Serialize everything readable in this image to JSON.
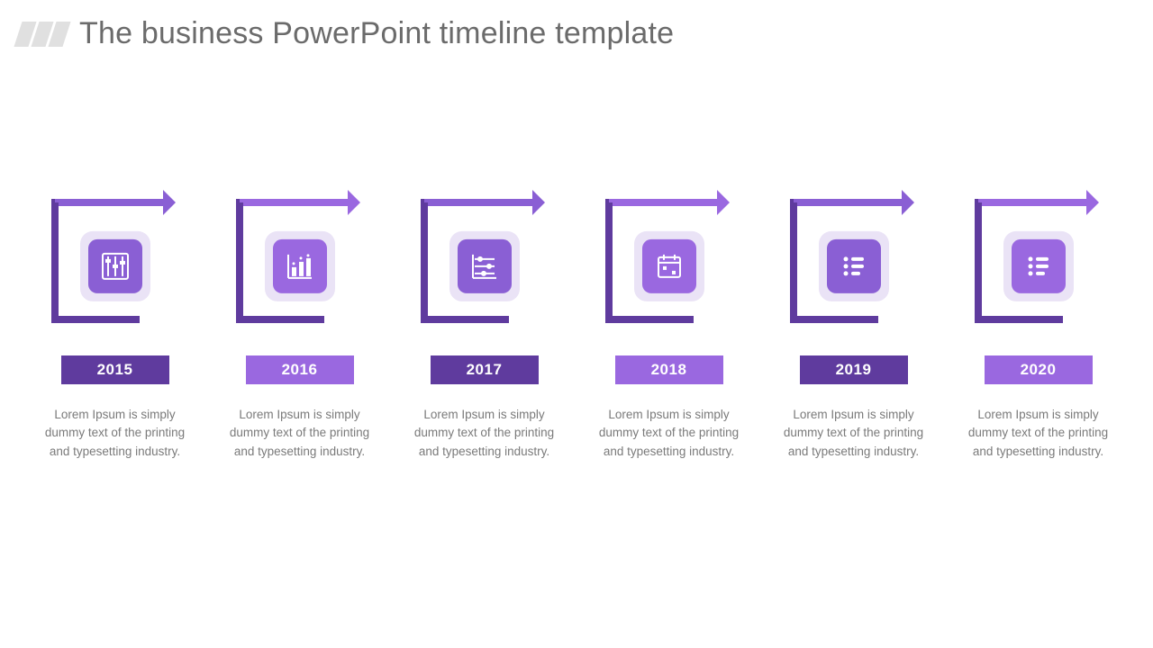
{
  "title": "The business PowerPoint timeline template",
  "colors": {
    "title": "#6b6b6b",
    "header_bar": "#e0e0e0",
    "icon_pale": "#eae3f6",
    "text": "#7a7a7a",
    "white": "#ffffff"
  },
  "timeline": [
    {
      "year": "2015",
      "color_dark": "#5f3b9e",
      "color_light": "#8a5fd4",
      "icon": "abacus",
      "desc": "Lorem Ipsum is simply dummy text of the printing and typesetting industry."
    },
    {
      "year": "2016",
      "color_dark": "#5f3b9e",
      "color_light": "#9a68e0",
      "icon": "bar-chart",
      "desc": "Lorem Ipsum is simply dummy text of the printing and typesetting industry."
    },
    {
      "year": "2017",
      "color_dark": "#5f3b9e",
      "color_light": "#8a5fd4",
      "icon": "sliders",
      "desc": "Lorem Ipsum is simply dummy text of the printing and typesetting industry."
    },
    {
      "year": "2018",
      "color_dark": "#5f3b9e",
      "color_light": "#9a68e0",
      "icon": "calendar",
      "desc": "Lorem Ipsum is simply dummy text of the printing and typesetting industry."
    },
    {
      "year": "2019",
      "color_dark": "#5f3b9e",
      "color_light": "#8a5fd4",
      "icon": "list",
      "desc": "Lorem Ipsum is simply dummy text of the printing and typesetting industry."
    },
    {
      "year": "2020",
      "color_dark": "#5f3b9e",
      "color_light": "#9a68e0",
      "icon": "list",
      "desc": "Lorem Ipsum is simply dummy text of the printing and typesetting industry."
    }
  ],
  "styling": {
    "frame_stroke_width": 8,
    "arrowhead_size": 14,
    "icon_outer_radius": 14,
    "icon_inner_radius": 10,
    "year_badge_width": 120,
    "year_badge_height": 32,
    "icon_size": 34
  }
}
